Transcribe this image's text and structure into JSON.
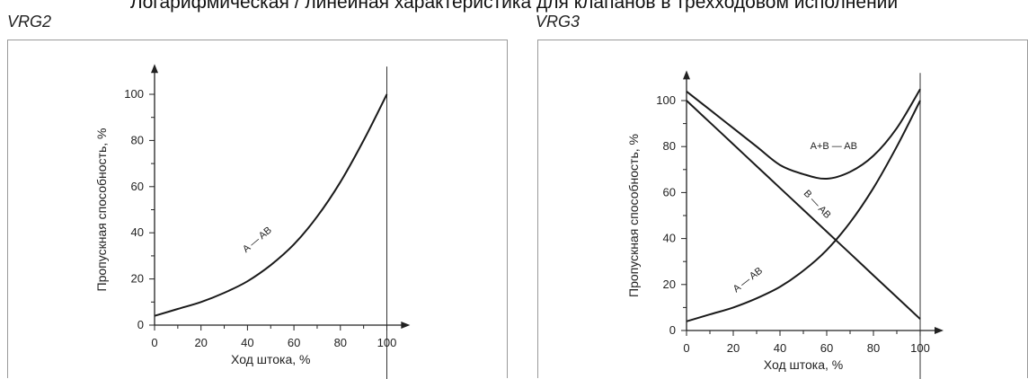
{
  "header": {
    "title": "Логарифмическая / линейная характеристика для клапанов в трехходовом исполнении"
  },
  "chart_data": [
    {
      "type": "line",
      "title": "VRG2",
      "xlabel": "Ход штока, %",
      "ylabel": "Пропускная способность, %",
      "xlim": [
        0,
        110
      ],
      "ylim": [
        0,
        110
      ],
      "x_ticks": [
        0,
        20,
        40,
        60,
        80,
        100
      ],
      "y_ticks": [
        0,
        20,
        40,
        60,
        80,
        100
      ],
      "grid": false,
      "series": [
        {
          "name": "A — AB",
          "x": [
            0,
            10,
            20,
            30,
            40,
            50,
            60,
            70,
            80,
            90,
            100
          ],
          "y": [
            4,
            7,
            10,
            14,
            19,
            26,
            35,
            47,
            62,
            80,
            100
          ]
        }
      ]
    },
    {
      "type": "line",
      "title": "VRG3",
      "xlabel": "Ход штока, %",
      "ylabel": "Пропускная способность, %",
      "xlim": [
        0,
        110
      ],
      "ylim": [
        0,
        110
      ],
      "x_ticks": [
        0,
        20,
        40,
        60,
        80,
        100
      ],
      "y_ticks": [
        0,
        20,
        40,
        60,
        80,
        100
      ],
      "grid": false,
      "series": [
        {
          "name": "A — AB",
          "x": [
            0,
            10,
            20,
            30,
            40,
            50,
            60,
            70,
            80,
            90,
            100
          ],
          "y": [
            4,
            7,
            10,
            14,
            19,
            26,
            35,
            47,
            62,
            80,
            100
          ]
        },
        {
          "name": "B — AB",
          "x": [
            0,
            10,
            20,
            30,
            40,
            50,
            60,
            70,
            80,
            90,
            100
          ],
          "y": [
            100,
            90.5,
            81,
            71.5,
            62,
            52.5,
            43,
            33.5,
            24,
            14.5,
            5
          ]
        },
        {
          "name": "A+B — AB",
          "x": [
            0,
            10,
            20,
            30,
            40,
            50,
            60,
            70,
            80,
            90,
            100
          ],
          "y": [
            104,
            96,
            88,
            80,
            72,
            68,
            66,
            69,
            76,
            88,
            105
          ]
        }
      ]
    }
  ]
}
